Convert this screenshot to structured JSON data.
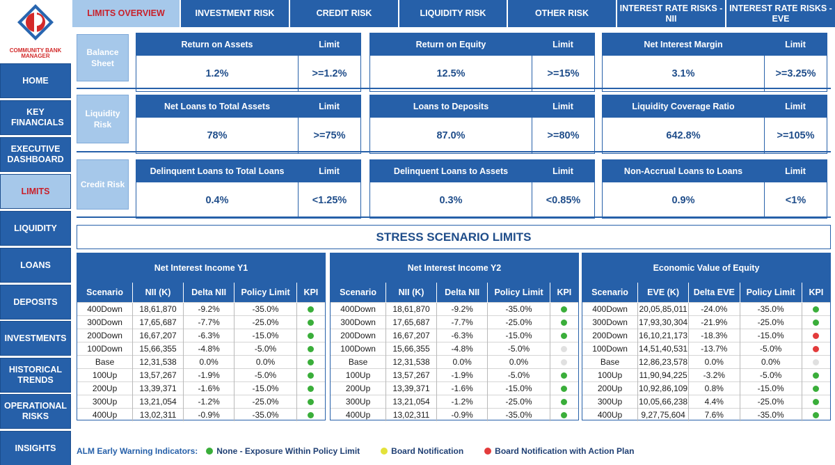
{
  "logo": {
    "brand_text": "COMMUNITY BANK MANAGER"
  },
  "sidebar": {
    "items": [
      {
        "label": "HOME"
      },
      {
        "label": "KEY FINANCIALS"
      },
      {
        "label": "EXECUTIVE DASHBOARD"
      },
      {
        "label": "LIMITS"
      },
      {
        "label": "LIQUIDITY"
      },
      {
        "label": "LOANS"
      },
      {
        "label": "DEPOSITS"
      },
      {
        "label": "INVESTMENTS"
      },
      {
        "label": "HISTORICAL TRENDS"
      },
      {
        "label": "OPERATIONAL RISKS"
      },
      {
        "label": "INSIGHTS"
      }
    ],
    "active": "LIMITS"
  },
  "tabs": {
    "items": [
      {
        "label": "LIMITS OVERVIEW"
      },
      {
        "label": "INVESTMENT RISK"
      },
      {
        "label": "CREDIT RISK"
      },
      {
        "label": "LIQUIDITY RISK"
      },
      {
        "label": "OTHER RISK"
      },
      {
        "label": "INTEREST RATE RISKS - NII"
      },
      {
        "label": "INTEREST RATE RISKS - EVE"
      }
    ],
    "active": "LIMITS OVERVIEW"
  },
  "sections": [
    {
      "label": "Balance Sheet",
      "cards": [
        {
          "name": "Return on Assets",
          "limit_header": "Limit",
          "value": "1.2%",
          "limit": ">=1.2%"
        },
        {
          "name": "Return on Equity",
          "limit_header": "Limit",
          "value": "12.5%",
          "limit": ">=15%"
        },
        {
          "name": "Net Interest Margin",
          "limit_header": "Limit",
          "value": "3.1%",
          "limit": ">=3.25%"
        }
      ]
    },
    {
      "label": "Liquidity Risk",
      "cards": [
        {
          "name": "Net Loans to Total Assets",
          "limit_header": "Limit",
          "value": "78%",
          "limit": ">=75%"
        },
        {
          "name": "Loans to Deposits",
          "limit_header": "Limit",
          "value": "87.0%",
          "limit": ">=80%"
        },
        {
          "name": "Liquidity Coverage Ratio",
          "limit_header": "Limit",
          "value": "642.8%",
          "limit": ">=105%"
        }
      ]
    },
    {
      "label": "Credit Risk",
      "cards": [
        {
          "name": "Delinquent Loans to Total Loans",
          "limit_header": "Limit",
          "value": "0.4%",
          "limit": "<1.25%"
        },
        {
          "name": "Delinquent Loans to Assets",
          "limit_header": "Limit",
          "value": "0.3%",
          "limit": "<0.85%"
        },
        {
          "name": "Non-Accrual Loans to Loans",
          "limit_header": "Limit",
          "value": "0.9%",
          "limit": "<1%"
        }
      ]
    }
  ],
  "stress": {
    "title": "STRESS SCENARIO LIMITS",
    "tables": [
      {
        "title": "Net Interest Income Y1",
        "columns": [
          "Scenario",
          "NII (K)",
          "Delta NII",
          "Policy Limit",
          "KPI"
        ],
        "rows": [
          [
            "400Down",
            "18,61,870",
            "-9.2%",
            "-35.0%",
            "green"
          ],
          [
            "300Down",
            "17,65,687",
            "-7.7%",
            "-25.0%",
            "green"
          ],
          [
            "200Down",
            "16,67,207",
            "-6.3%",
            "-15.0%",
            "green"
          ],
          [
            "100Down",
            "15,66,355",
            "-4.8%",
            "-5.0%",
            "green"
          ],
          [
            "Base",
            "12,31,538",
            "0.0%",
            "0.0%",
            "green"
          ],
          [
            "100Up",
            "13,57,267",
            "-1.9%",
            "-5.0%",
            "green"
          ],
          [
            "200Up",
            "13,39,371",
            "-1.6%",
            "-15.0%",
            "green"
          ],
          [
            "300Up",
            "13,21,054",
            "-1.2%",
            "-25.0%",
            "green"
          ],
          [
            "400Up",
            "13,02,311",
            "-0.9%",
            "-35.0%",
            "green"
          ]
        ]
      },
      {
        "title": "Net Interest Income Y2",
        "columns": [
          "Scenario",
          "NII (K)",
          "Delta NII",
          "Policy Limit",
          "KPI"
        ],
        "rows": [
          [
            "400Down",
            "18,61,870",
            "-9.2%",
            "-35.0%",
            "green"
          ],
          [
            "300Down",
            "17,65,687",
            "-7.7%",
            "-25.0%",
            "green"
          ],
          [
            "200Down",
            "16,67,207",
            "-6.3%",
            "-15.0%",
            "green"
          ],
          [
            "100Down",
            "15,66,355",
            "-4.8%",
            "-5.0%",
            "grey"
          ],
          [
            "Base",
            "12,31,538",
            "0.0%",
            "0.0%",
            "grey"
          ],
          [
            "100Up",
            "13,57,267",
            "-1.9%",
            "-5.0%",
            "green"
          ],
          [
            "200Up",
            "13,39,371",
            "-1.6%",
            "-15.0%",
            "green"
          ],
          [
            "300Up",
            "13,21,054",
            "-1.2%",
            "-25.0%",
            "green"
          ],
          [
            "400Up",
            "13,02,311",
            "-0.9%",
            "-35.0%",
            "green"
          ]
        ]
      },
      {
        "title": "Economic Value of Equity",
        "columns": [
          "Scenario",
          "EVE (K)",
          "Delta EVE",
          "Policy Limit",
          "KPI"
        ],
        "rows": [
          [
            "400Down",
            "20,05,85,011",
            "-24.0%",
            "-35.0%",
            "green"
          ],
          [
            "300Down",
            "17,93,30,304",
            "-21.9%",
            "-25.0%",
            "green"
          ],
          [
            "200Down",
            "16,10,21,173",
            "-18.3%",
            "-15.0%",
            "red"
          ],
          [
            "100Down",
            "14,51,40,531",
            "-13.7%",
            "-5.0%",
            "red"
          ],
          [
            "Base",
            "12,86,23,578",
            "0.0%",
            "0.0%",
            "grey"
          ],
          [
            "100Up",
            "11,90,94,225",
            "-3.2%",
            "-5.0%",
            "green"
          ],
          [
            "200Up",
            "10,92,86,109",
            "0.8%",
            "-15.0%",
            "green"
          ],
          [
            "300Up",
            "10,05,66,238",
            "4.4%",
            "-25.0%",
            "green"
          ],
          [
            "400Up",
            "9,27,75,604",
            "7.6%",
            "-35.0%",
            "green"
          ]
        ]
      }
    ]
  },
  "legend": {
    "title": "ALM Early Warning Indicators:",
    "items": [
      {
        "label": "None - Exposure Within Policy Limit",
        "color": "#3aae3a"
      },
      {
        "label": "Board Notification",
        "color": "#e3e23a"
      },
      {
        "label": "Board Notification with Action Plan",
        "color": "#e33b3b"
      }
    ]
  },
  "colors": {
    "primary": "#2660a9",
    "active_bg": "#a6c8ea",
    "active_text": "#c8202a",
    "kpi_green": "#3aae3a",
    "kpi_red": "#e33b3b",
    "kpi_grey": "#e0e0e0"
  }
}
